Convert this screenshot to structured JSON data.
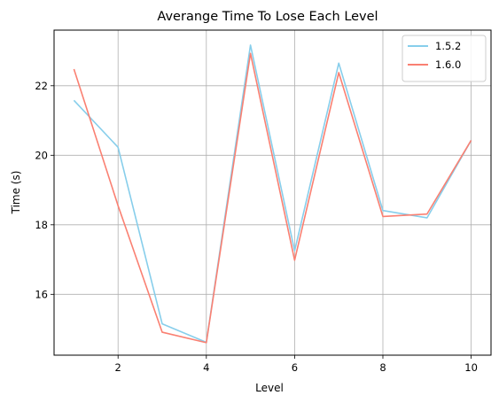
{
  "chart_data": {
    "type": "line",
    "title": "Averange Time To Lose Each Level",
    "xlabel": "Level",
    "ylabel": "Time (s)",
    "x": [
      1,
      2,
      3,
      4,
      5,
      6,
      7,
      8,
      9,
      10
    ],
    "xlim": [
      0.55,
      10.45
    ],
    "ylim": [
      14.25,
      23.6
    ],
    "xticks": [
      2,
      4,
      6,
      8,
      10
    ],
    "xtick_labels": [
      "2",
      "4",
      "6",
      "8",
      "10"
    ],
    "yticks": [
      16,
      18,
      20,
      22
    ],
    "ytick_labels": [
      "16",
      "18",
      "20",
      "22"
    ],
    "grid": true,
    "legend_position": "top-right",
    "series": [
      {
        "name": "1.5.2",
        "color": "#87ceeb",
        "values": [
          21.58,
          20.23,
          15.15,
          14.62,
          23.17,
          17.25,
          22.65,
          18.41,
          18.2,
          20.43
        ]
      },
      {
        "name": "1.6.0",
        "color": "#fa8072",
        "values": [
          22.48,
          18.55,
          14.91,
          14.61,
          22.93,
          16.98,
          22.38,
          18.24,
          18.31,
          20.43
        ]
      }
    ]
  }
}
